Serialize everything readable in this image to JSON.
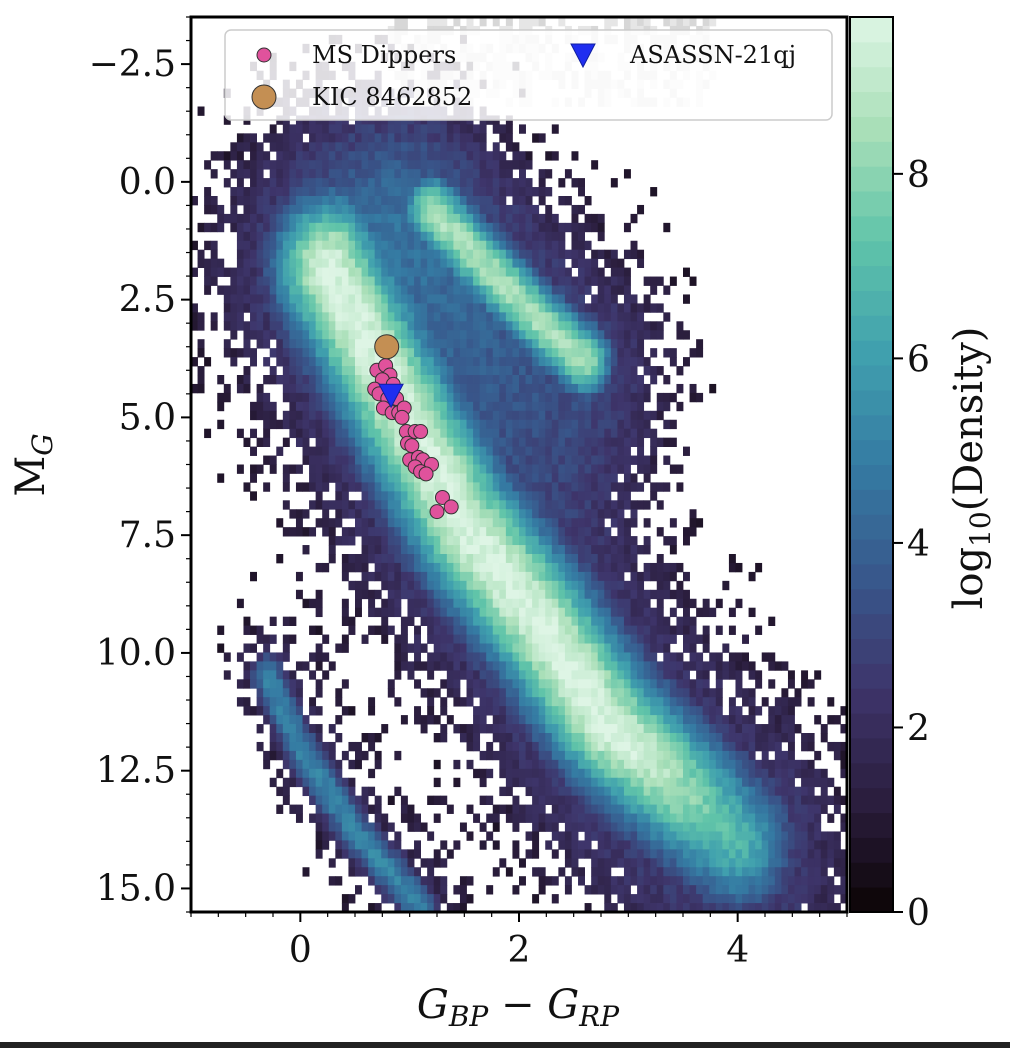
{
  "chart_data": {
    "type": "heatmap",
    "title": "",
    "xlabel": "G_BP − G_RP",
    "ylabel": "M_G",
    "xlim": [
      -1.0,
      5.0
    ],
    "ylim": [
      15.5,
      -3.5
    ],
    "y_inverted": true,
    "xticks": [
      0,
      2,
      4
    ],
    "xtick_labels": [
      "0",
      "2",
      "4"
    ],
    "yticks": [
      -2.5,
      0.0,
      2.5,
      5.0,
      7.5,
      10.0,
      12.5,
      15.0
    ],
    "ytick_labels": [
      "−2.5",
      "0.0",
      "2.5",
      "5.0",
      "7.5",
      "10.0",
      "12.5",
      "15.0"
    ],
    "colorbar": {
      "label": "log10(Density)",
      "range": [
        0,
        9.7
      ],
      "ticks": [
        0,
        2,
        4,
        6,
        8
      ],
      "tick_labels": [
        "0",
        "2",
        "4",
        "6",
        "8"
      ],
      "colormap": "mako",
      "stops": [
        "#0b0405",
        "#2b1e3e",
        "#3e356b",
        "#38588c",
        "#357ba3",
        "#40a0ae",
        "#60c4a9",
        "#a9dfb8",
        "#def5e5"
      ]
    },
    "density_features": [
      {
        "name": "main sequence",
        "path": [
          [
            0.25,
            1.8
          ],
          [
            0.9,
            4.7
          ],
          [
            1.5,
            7.3
          ],
          [
            2.2,
            9.4
          ],
          [
            2.8,
            11.5
          ],
          [
            3.5,
            13.2
          ],
          [
            4.0,
            14.3
          ]
        ]
      },
      {
        "name": "red giant branch",
        "path": [
          [
            1.2,
            0.6
          ],
          [
            1.7,
            1.8
          ],
          [
            2.2,
            3.0
          ],
          [
            2.6,
            3.8
          ]
        ]
      },
      {
        "name": "white dwarf sequence",
        "path": [
          [
            -0.3,
            10.5
          ],
          [
            0.0,
            12.0
          ],
          [
            0.5,
            13.8
          ],
          [
            1.1,
            15.4
          ]
        ]
      }
    ],
    "series": [
      {
        "name": "MS Dippers",
        "marker": "circle",
        "color": "#e0529c",
        "points": [
          [
            0.7,
            4.0
          ],
          [
            0.78,
            3.9
          ],
          [
            0.82,
            4.1
          ],
          [
            0.75,
            4.2
          ],
          [
            0.68,
            4.4
          ],
          [
            0.85,
            4.3
          ],
          [
            0.72,
            4.5
          ],
          [
            0.8,
            4.6
          ],
          [
            0.88,
            4.6
          ],
          [
            0.76,
            4.8
          ],
          [
            0.84,
            4.9
          ],
          [
            0.9,
            4.9
          ],
          [
            0.95,
            4.8
          ],
          [
            0.93,
            5.0
          ],
          [
            0.97,
            5.3
          ],
          [
            1.05,
            5.3
          ],
          [
            1.1,
            5.3
          ],
          [
            0.98,
            5.55
          ],
          [
            1.02,
            5.6
          ],
          [
            1.0,
            5.9
          ],
          [
            1.08,
            5.85
          ],
          [
            1.12,
            5.9
          ],
          [
            1.05,
            6.05
          ],
          [
            1.2,
            6.0
          ],
          [
            1.1,
            6.15
          ],
          [
            1.15,
            6.2
          ],
          [
            1.3,
            6.7
          ],
          [
            1.38,
            6.9
          ],
          [
            1.25,
            7.0
          ]
        ]
      },
      {
        "name": "KIC 8462852",
        "marker": "circle",
        "color": "#c48f53",
        "points": [
          [
            0.79,
            3.5
          ]
        ]
      },
      {
        "name": "ASASSN-21qj",
        "marker": "triangle-down",
        "color": "#1f2ef0",
        "points": [
          [
            0.83,
            4.55
          ]
        ]
      }
    ],
    "legend": {
      "placement": "top",
      "entries": [
        {
          "label": "MS Dippers",
          "marker": "circle",
          "color": "#e0529c"
        },
        {
          "label": "ASASSN-21qj",
          "marker": "triangle-down",
          "color": "#1f2ef0"
        },
        {
          "label": "KIC 8462852",
          "marker": "circle",
          "color": "#c48f53"
        }
      ]
    }
  }
}
